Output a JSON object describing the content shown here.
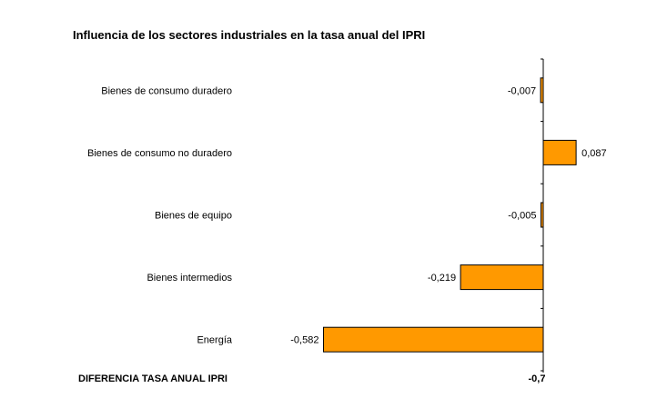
{
  "chart_data": {
    "type": "bar",
    "orientation": "horizontal",
    "title": "Influencia de los sectores industriales en la tasa anual del IPRI",
    "categories": [
      "Bienes de consumo duradero",
      "Bienes de consumo no duradero",
      "Bienes de equipo",
      "Bienes intermedios",
      "Energía"
    ],
    "values": [
      -0.007,
      0.087,
      -0.005,
      -0.219,
      -0.582
    ],
    "value_labels": [
      "-0,007",
      "0,087",
      "-0,005",
      "-0,219",
      "-0,582"
    ],
    "bar_color": "#FF9900",
    "bar_edge_color": "#000000",
    "grid": false,
    "total": {
      "label": "DIFERENCIA TASA ANUAL IPRI",
      "value": -0.7,
      "value_label": "-0,7"
    }
  }
}
